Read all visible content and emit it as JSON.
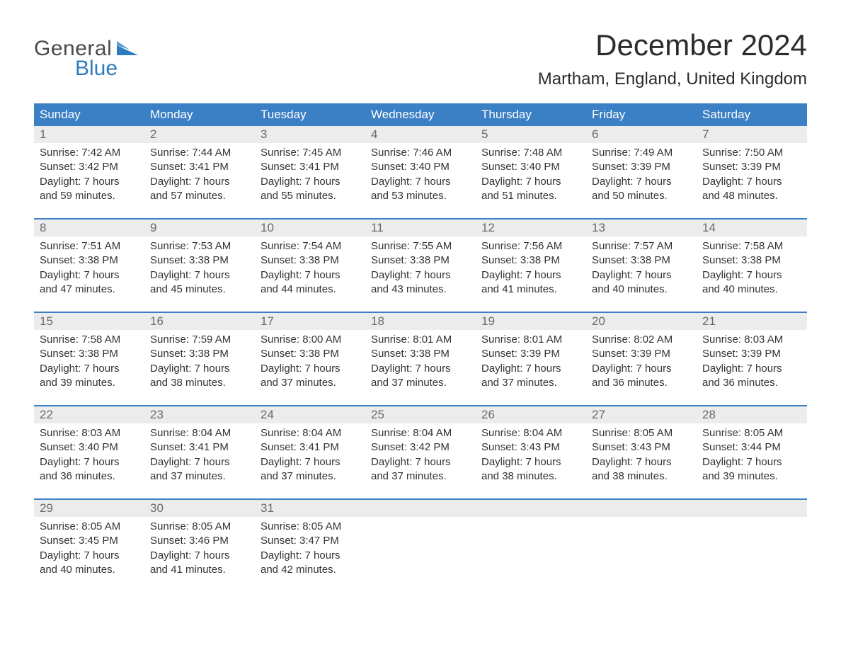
{
  "logo": {
    "word1": "General",
    "word2": "Blue",
    "color_blue": "#2f7bbf",
    "color_gray": "#4a4a4a"
  },
  "title": "December 2024",
  "location": "Martham, England, United Kingdom",
  "colors": {
    "header_bg": "#3b7fc4",
    "header_text": "#ffffff",
    "daynum_bg": "#ececec",
    "daynum_text": "#6a6a6a",
    "body_text": "#333333",
    "week_divider": "#3b7fc4",
    "page_bg": "#ffffff"
  },
  "fonts": {
    "title_size_pt": 32,
    "location_size_pt": 18,
    "dow_size_pt": 13,
    "body_size_pt": 11
  },
  "dow": [
    "Sunday",
    "Monday",
    "Tuesday",
    "Wednesday",
    "Thursday",
    "Friday",
    "Saturday"
  ],
  "weeks": [
    [
      {
        "n": "1",
        "sr": "7:42 AM",
        "ss": "3:42 PM",
        "dl": "7 hours\nand 59 minutes."
      },
      {
        "n": "2",
        "sr": "7:44 AM",
        "ss": "3:41 PM",
        "dl": "7 hours\nand 57 minutes."
      },
      {
        "n": "3",
        "sr": "7:45 AM",
        "ss": "3:41 PM",
        "dl": "7 hours\nand 55 minutes."
      },
      {
        "n": "4",
        "sr": "7:46 AM",
        "ss": "3:40 PM",
        "dl": "7 hours\nand 53 minutes."
      },
      {
        "n": "5",
        "sr": "7:48 AM",
        "ss": "3:40 PM",
        "dl": "7 hours\nand 51 minutes."
      },
      {
        "n": "6",
        "sr": "7:49 AM",
        "ss": "3:39 PM",
        "dl": "7 hours\nand 50 minutes."
      },
      {
        "n": "7",
        "sr": "7:50 AM",
        "ss": "3:39 PM",
        "dl": "7 hours\nand 48 minutes."
      }
    ],
    [
      {
        "n": "8",
        "sr": "7:51 AM",
        "ss": "3:38 PM",
        "dl": "7 hours\nand 47 minutes."
      },
      {
        "n": "9",
        "sr": "7:53 AM",
        "ss": "3:38 PM",
        "dl": "7 hours\nand 45 minutes."
      },
      {
        "n": "10",
        "sr": "7:54 AM",
        "ss": "3:38 PM",
        "dl": "7 hours\nand 44 minutes."
      },
      {
        "n": "11",
        "sr": "7:55 AM",
        "ss": "3:38 PM",
        "dl": "7 hours\nand 43 minutes."
      },
      {
        "n": "12",
        "sr": "7:56 AM",
        "ss": "3:38 PM",
        "dl": "7 hours\nand 41 minutes."
      },
      {
        "n": "13",
        "sr": "7:57 AM",
        "ss": "3:38 PM",
        "dl": "7 hours\nand 40 minutes."
      },
      {
        "n": "14",
        "sr": "7:58 AM",
        "ss": "3:38 PM",
        "dl": "7 hours\nand 40 minutes."
      }
    ],
    [
      {
        "n": "15",
        "sr": "7:58 AM",
        "ss": "3:38 PM",
        "dl": "7 hours\nand 39 minutes."
      },
      {
        "n": "16",
        "sr": "7:59 AM",
        "ss": "3:38 PM",
        "dl": "7 hours\nand 38 minutes."
      },
      {
        "n": "17",
        "sr": "8:00 AM",
        "ss": "3:38 PM",
        "dl": "7 hours\nand 37 minutes."
      },
      {
        "n": "18",
        "sr": "8:01 AM",
        "ss": "3:38 PM",
        "dl": "7 hours\nand 37 minutes."
      },
      {
        "n": "19",
        "sr": "8:01 AM",
        "ss": "3:39 PM",
        "dl": "7 hours\nand 37 minutes."
      },
      {
        "n": "20",
        "sr": "8:02 AM",
        "ss": "3:39 PM",
        "dl": "7 hours\nand 36 minutes."
      },
      {
        "n": "21",
        "sr": "8:03 AM",
        "ss": "3:39 PM",
        "dl": "7 hours\nand 36 minutes."
      }
    ],
    [
      {
        "n": "22",
        "sr": "8:03 AM",
        "ss": "3:40 PM",
        "dl": "7 hours\nand 36 minutes."
      },
      {
        "n": "23",
        "sr": "8:04 AM",
        "ss": "3:41 PM",
        "dl": "7 hours\nand 37 minutes."
      },
      {
        "n": "24",
        "sr": "8:04 AM",
        "ss": "3:41 PM",
        "dl": "7 hours\nand 37 minutes."
      },
      {
        "n": "25",
        "sr": "8:04 AM",
        "ss": "3:42 PM",
        "dl": "7 hours\nand 37 minutes."
      },
      {
        "n": "26",
        "sr": "8:04 AM",
        "ss": "3:43 PM",
        "dl": "7 hours\nand 38 minutes."
      },
      {
        "n": "27",
        "sr": "8:05 AM",
        "ss": "3:43 PM",
        "dl": "7 hours\nand 38 minutes."
      },
      {
        "n": "28",
        "sr": "8:05 AM",
        "ss": "3:44 PM",
        "dl": "7 hours\nand 39 minutes."
      }
    ],
    [
      {
        "n": "29",
        "sr": "8:05 AM",
        "ss": "3:45 PM",
        "dl": "7 hours\nand 40 minutes."
      },
      {
        "n": "30",
        "sr": "8:05 AM",
        "ss": "3:46 PM",
        "dl": "7 hours\nand 41 minutes."
      },
      {
        "n": "31",
        "sr": "8:05 AM",
        "ss": "3:47 PM",
        "dl": "7 hours\nand 42 minutes."
      },
      null,
      null,
      null,
      null
    ]
  ],
  "labels": {
    "sunrise": "Sunrise:",
    "sunset": "Sunset:",
    "daylight": "Daylight:"
  }
}
